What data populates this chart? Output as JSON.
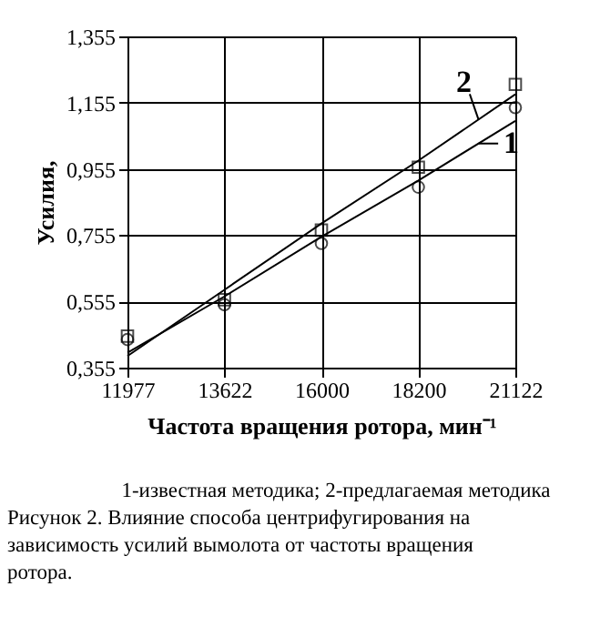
{
  "chart_data": {
    "type": "scatter",
    "xlabel": "Частота вращения ротора, мин⁻¹",
    "ylabel": "Усилия,",
    "categories": [
      "11977",
      "13622",
      "16000",
      "18200",
      "21122"
    ],
    "ylim": [
      0.355,
      1.355
    ],
    "yticks": [
      {
        "value": 0.355,
        "label": "0,355"
      },
      {
        "value": 0.555,
        "label": "0,555"
      },
      {
        "value": 0.755,
        "label": "0,755"
      },
      {
        "value": 0.955,
        "label": "0,955"
      },
      {
        "value": 1.155,
        "label": "1,155"
      },
      {
        "value": 1.355,
        "label": "1,355"
      }
    ],
    "grid": true,
    "series": [
      {
        "marker": "circle",
        "color": "#000000",
        "values": [
          0.44,
          0.545,
          0.73,
          0.9,
          1.14
        ]
      },
      {
        "marker": "square",
        "color": "#000000",
        "values": [
          0.45,
          0.56,
          0.77,
          0.96,
          1.21
        ]
      },
      {
        "name": "1",
        "type": "line",
        "marker": "none",
        "line_style": "solid",
        "color": "#000000",
        "values": [
          0.4,
          0.57,
          0.75,
          0.92,
          1.1
        ]
      },
      {
        "name": "2",
        "type": "line",
        "marker": "none",
        "line_style": "solid",
        "color": "#000000",
        "values": [
          0.39,
          0.59,
          0.79,
          0.98,
          1.18
        ]
      }
    ],
    "annotations": [
      "1-известная методика; 2-предлагаемая методика",
      "Рисунок 2. Влияние способа центрифугирования на зависимость усилий вымолота от частоты вращения ротора."
    ]
  }
}
